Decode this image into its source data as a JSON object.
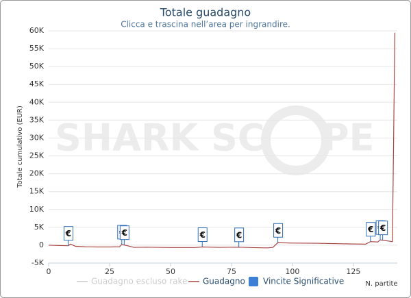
{
  "chart_data": {
    "type": "line",
    "title": "Totale guadagno",
    "subtitle": "Clicca e trascina nell’area per ingrandire.",
    "y_label": "Totale cumulativo (EUR)",
    "x_label": "N. partite",
    "watermark": [
      "SHARK SC",
      "PE"
    ],
    "x": [
      0,
      5,
      8,
      9,
      11,
      15,
      20,
      25,
      29,
      30,
      32,
      35,
      40,
      50,
      60,
      63,
      70,
      78,
      85,
      90,
      92,
      94,
      100,
      110,
      120,
      125,
      130,
      132,
      135,
      136,
      140,
      141,
      142
    ],
    "values": [
      0,
      -100,
      -150,
      300,
      -300,
      -450,
      -500,
      -500,
      -450,
      200,
      -100,
      -600,
      -550,
      -650,
      -650,
      -500,
      -600,
      -550,
      -700,
      -750,
      -600,
      700,
      600,
      550,
      400,
      350,
      300,
      1000,
      900,
      1500,
      1100,
      1000,
      59500
    ],
    "color": "#a94442",
    "flags": {
      "x": [
        8,
        30,
        31,
        63,
        78,
        94,
        132,
        136,
        137
      ],
      "label": "€",
      "color": "#2f6db5"
    },
    "legend": [
      {
        "name": "Guadagno escluso rake",
        "color": "#cccccc",
        "hidden": true
      },
      {
        "name": "Guadagno",
        "color": "#a94442",
        "hidden": false
      },
      {
        "name": "Vincite Significative",
        "color": "#3c7fd6",
        "hidden": false,
        "symbol": "square"
      }
    ],
    "xlim": [
      0,
      143
    ],
    "xticks": [
      0,
      25,
      50,
      75,
      100,
      125
    ],
    "ylim": [
      -5000,
      60000
    ],
    "yticks": [
      {
        "value": -5000,
        "label": "-5K"
      },
      0,
      {
        "value": 5000,
        "label": "5K"
      },
      {
        "value": 10000,
        "label": "10K"
      },
      {
        "value": 15000,
        "label": "15K"
      },
      {
        "value": 20000,
        "label": "20K"
      },
      {
        "value": 25000,
        "label": "25K"
      },
      {
        "value": 30000,
        "label": "30K"
      },
      {
        "value": 35000,
        "label": "35K"
      },
      {
        "value": 40000,
        "label": "40K"
      },
      {
        "value": 45000,
        "label": "45K"
      },
      {
        "value": 50000,
        "label": "50K"
      },
      {
        "value": 55000,
        "label": "55K"
      },
      {
        "value": 60000,
        "label": "60K"
      }
    ],
    "grid": true
  }
}
